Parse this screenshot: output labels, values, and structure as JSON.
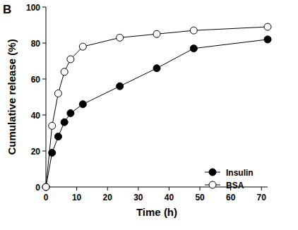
{
  "chart_data": {
    "type": "line",
    "title": "B",
    "x_label": "Time (h)",
    "y_label": "Cumulative release (%)",
    "x": [
      0,
      2,
      4,
      6,
      8,
      12,
      24,
      36,
      48,
      72
    ],
    "series": [
      {
        "name": "Insulin",
        "color": "#000000",
        "marker": "filled-circle",
        "line_style": "solid",
        "values": [
          0,
          19,
          28,
          36,
          41,
          46,
          56,
          66,
          77,
          82
        ]
      },
      {
        "name": "BSA",
        "color": "#000000",
        "marker": "open-circle",
        "line_style": "solid",
        "values": [
          0,
          34,
          52,
          64,
          71,
          78,
          83,
          85,
          87,
          89
        ]
      }
    ],
    "xlim": [
      0,
      72
    ],
    "xticks": [
      0,
      10,
      20,
      30,
      40,
      50,
      60,
      70
    ],
    "ylim": [
      0,
      100
    ],
    "yticks": [
      0,
      20,
      40,
      60,
      80,
      100
    ],
    "grid": false,
    "legend": "lower right"
  }
}
